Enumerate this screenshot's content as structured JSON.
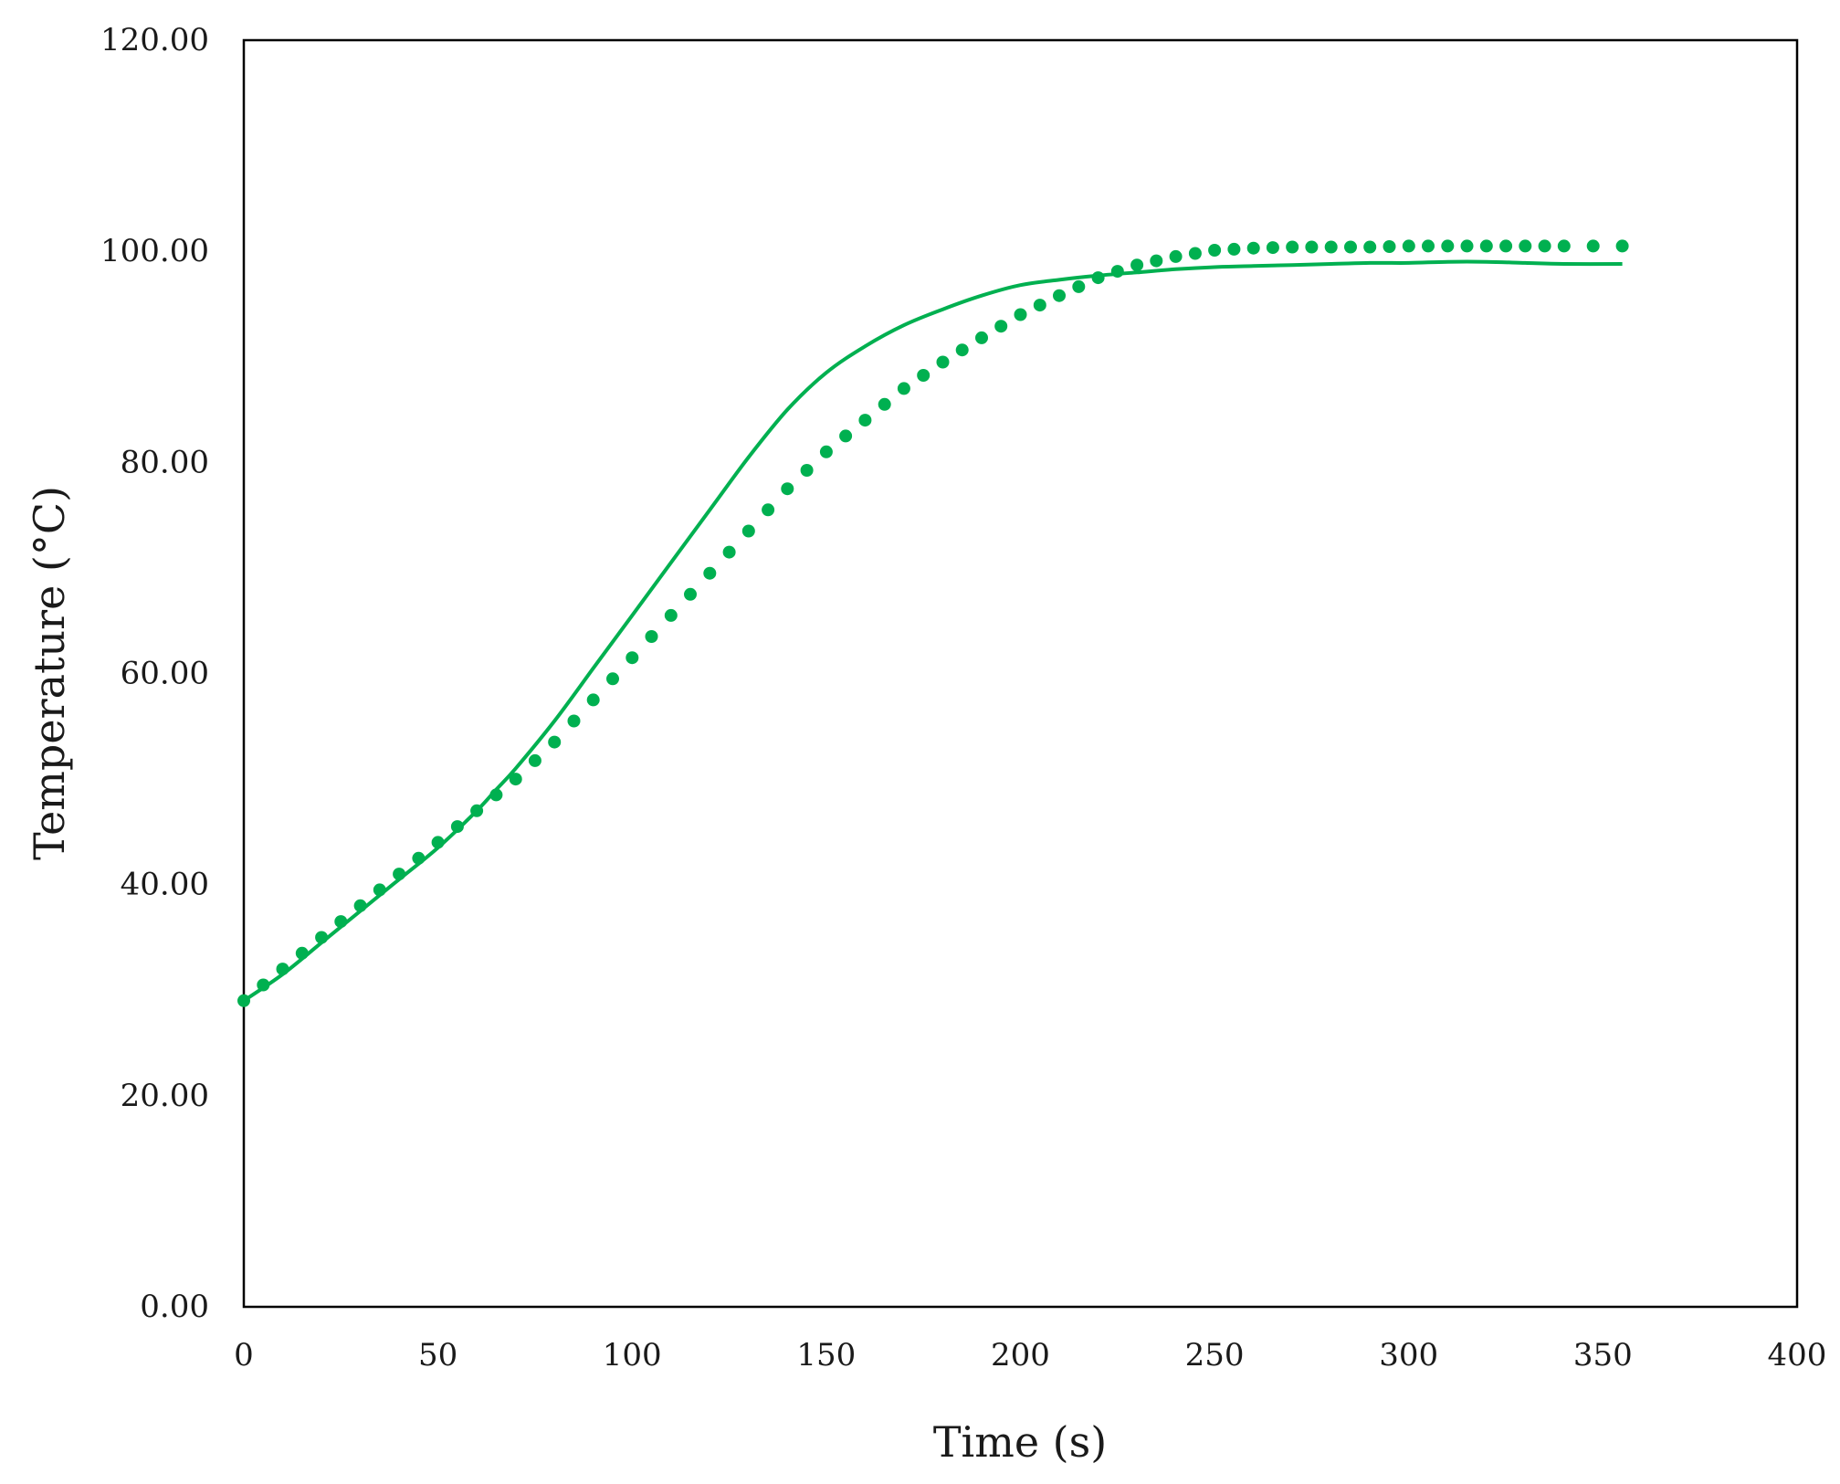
{
  "chart_data": {
    "type": "line",
    "title": "",
    "xlabel": "Time (s)",
    "ylabel": "Temperature (°C)",
    "xlim": [
      0,
      400
    ],
    "ylim": [
      0,
      120
    ],
    "x_ticks": [
      0,
      50,
      100,
      150,
      200,
      250,
      300,
      350,
      400
    ],
    "x_tick_labels": [
      "0",
      "50",
      "100",
      "150",
      "200",
      "250",
      "300",
      "350",
      "400"
    ],
    "y_ticks": [
      0,
      20,
      40,
      60,
      80,
      100,
      120
    ],
    "y_tick_labels": [
      "0.00",
      "20.00",
      "40.00",
      "60.00",
      "80.00",
      "100.00",
      "120.00"
    ],
    "grid": false,
    "legend": "none",
    "series_color": "#00b050",
    "series": [
      {
        "name": "solid",
        "style": "solid",
        "x": [
          0,
          10,
          20,
          30,
          40,
          50,
          60,
          65,
          70,
          80,
          90,
          100,
          110,
          120,
          130,
          140,
          150,
          160,
          170,
          180,
          190,
          200,
          210,
          220,
          230,
          240,
          250,
          260,
          270,
          280,
          290,
          300,
          310,
          320,
          330,
          340,
          355
        ],
        "y": [
          29,
          31.5,
          34.5,
          37.5,
          40.5,
          43.5,
          47,
          49,
          51,
          55.5,
          60.5,
          65.5,
          70.5,
          75.5,
          80.5,
          85,
          88.5,
          91,
          93,
          94.5,
          95.8,
          96.8,
          97.3,
          97.7,
          98.0,
          98.3,
          98.5,
          98.6,
          98.7,
          98.8,
          98.9,
          98.9,
          99.0,
          99.0,
          98.9,
          98.8,
          98.8
        ]
      },
      {
        "name": "dotted",
        "style": "dotted",
        "x": [
          0,
          10,
          20,
          30,
          40,
          50,
          60,
          70,
          80,
          90,
          100,
          110,
          120,
          130,
          140,
          150,
          160,
          170,
          180,
          190,
          200,
          210,
          220,
          230,
          240,
          250,
          260,
          270,
          280,
          290,
          300,
          310,
          320,
          330,
          340,
          355
        ],
        "y": [
          29,
          32,
          35,
          38,
          41,
          44,
          47,
          50,
          53.5,
          57.5,
          61.5,
          65.5,
          69.5,
          73.5,
          77.5,
          81,
          84,
          87,
          89.5,
          91.8,
          94,
          95.8,
          97.5,
          98.7,
          99.5,
          100.1,
          100.3,
          100.4,
          100.4,
          100.4,
          100.5,
          100.5,
          100.5,
          100.5,
          100.5,
          100.5
        ]
      }
    ]
  }
}
